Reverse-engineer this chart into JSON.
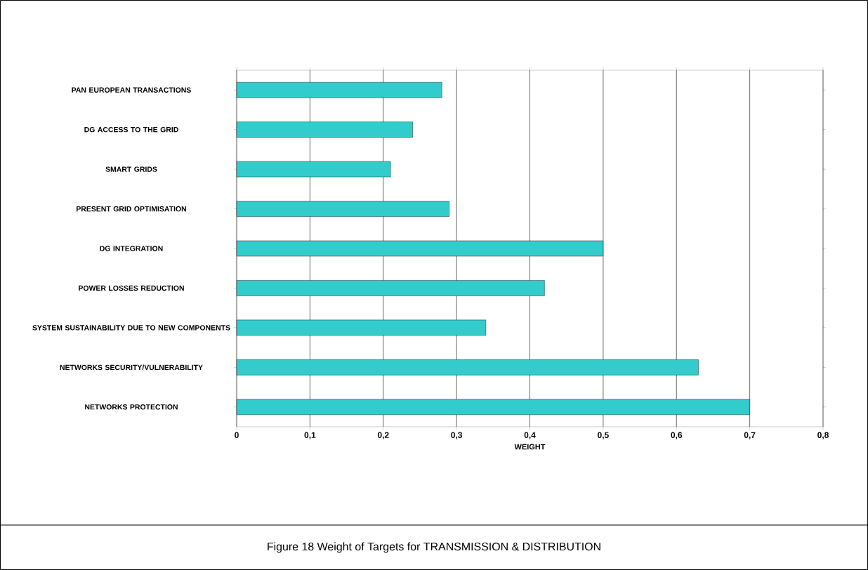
{
  "chart_data": {
    "type": "bar",
    "orientation": "horizontal",
    "categories": [
      "PAN EUROPEAN TRANSACTIONS",
      "DG ACCESS TO THE GRID",
      "SMART GRIDS",
      "PRESENT GRID OPTIMISATION",
      "DG INTEGRATION",
      "POWER LOSSES REDUCTION",
      "SYSTEM SUSTAINABILITY DUE TO NEW COMPONENTS",
      "NETWORKS SECURITY/VULNERABILITY",
      "NETWORKS PROTECTION"
    ],
    "values": [
      0.28,
      0.24,
      0.21,
      0.29,
      0.5,
      0.42,
      0.34,
      0.63,
      0.7
    ],
    "color": "#33cccc",
    "xlim": [
      0,
      0.8
    ],
    "xticks": [
      {
        "value": 0,
        "label": "0"
      },
      {
        "value": 0.1,
        "label": "0,1"
      },
      {
        "value": 0.2,
        "label": "0,2"
      },
      {
        "value": 0.3,
        "label": "0,3"
      },
      {
        "value": 0.4,
        "label": "0,4"
      },
      {
        "value": 0.5,
        "label": "0,5"
      },
      {
        "value": 0.6,
        "label": "0,6"
      },
      {
        "value": 0.7,
        "label": "0,7"
      },
      {
        "value": 0.8,
        "label": "0,8"
      }
    ],
    "xlabel": "WEIGHT",
    "grid": "x",
    "annotations": [
      "Figure 18   Weight of Targets for TRANSMISSION & DISTRIBUTION"
    ]
  }
}
